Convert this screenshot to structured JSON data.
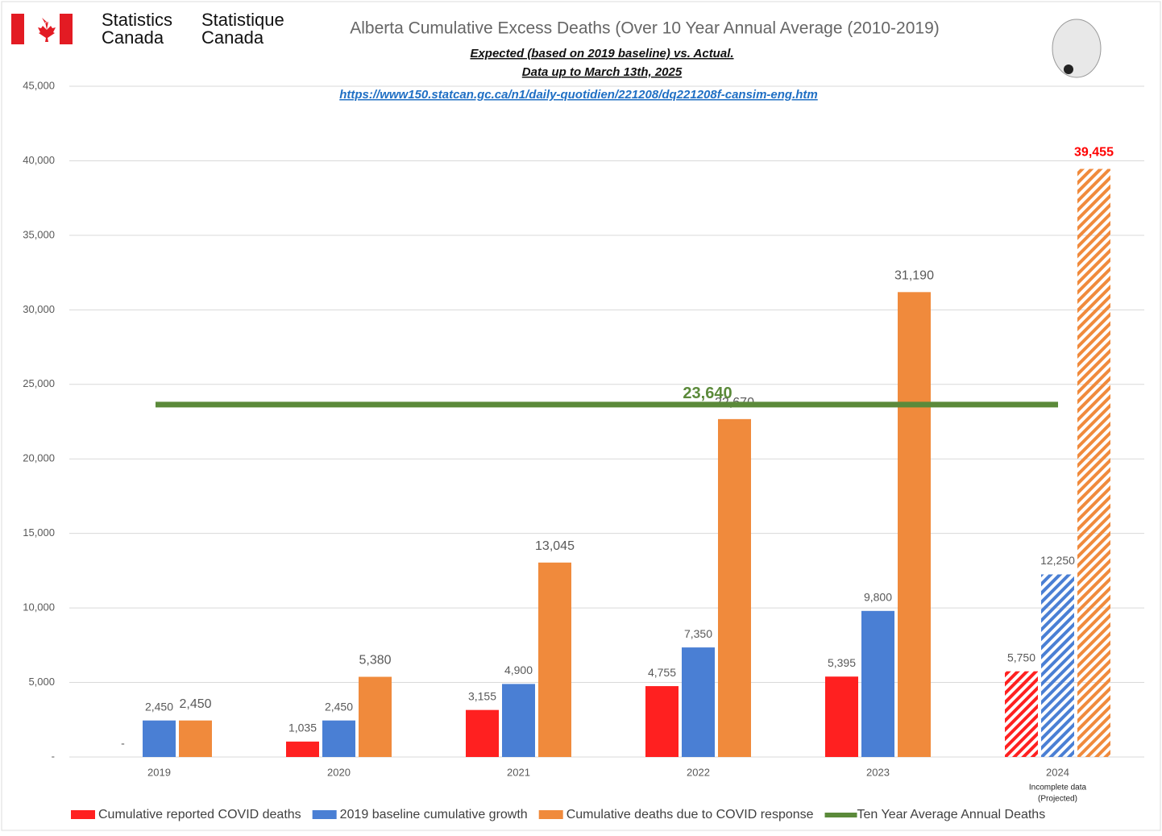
{
  "header": {
    "left_agency": [
      "Statistics",
      "Canada"
    ],
    "right_agency": [
      "Statistique",
      "Canada"
    ]
  },
  "chart_data": {
    "type": "bar",
    "title": "Alberta Cumulative Excess Deaths (Over 10 Year Annual Average (2010-2019)",
    "subtitles": [
      "Expected (based on 2019 baseline) vs. Actual.",
      "Data up to March 13th, 2025"
    ],
    "link": "https://www150.statcan.gc.ca/n1/daily-quotidien/221208/dq221208f-cansim-eng.htm",
    "categories": [
      "2019",
      "2020",
      "2021",
      "2022",
      "2023",
      "2024"
    ],
    "category_notes": [
      null,
      null,
      null,
      null,
      null,
      [
        "Incomplete data",
        "(Projected)"
      ]
    ],
    "hatched": [
      false,
      false,
      false,
      false,
      false,
      true
    ],
    "ylim": [
      0,
      45000
    ],
    "yticks": [
      {
        "value": 0,
        "label": "-"
      },
      {
        "value": 5000,
        "label": "5,000"
      },
      {
        "value": 10000,
        "label": "10,000"
      },
      {
        "value": 15000,
        "label": "15,000"
      },
      {
        "value": 20000,
        "label": "20,000"
      },
      {
        "value": 25000,
        "label": "25,000"
      },
      {
        "value": 30000,
        "label": "30,000"
      },
      {
        "value": 35000,
        "label": "35,000"
      },
      {
        "value": 40000,
        "label": "40,000"
      },
      {
        "value": 45000,
        "label": "45,000"
      }
    ],
    "grid": true,
    "series": [
      {
        "name": "Cumulative reported COVID deaths",
        "color": "#ff2020",
        "values": [
          0,
          1035,
          3155,
          4755,
          5395,
          5750
        ],
        "value_labels": [
          "-",
          "1,035",
          "3,155",
          "4,755",
          "5,395",
          "5,750"
        ]
      },
      {
        "name": "2019 baseline cumulative growth",
        "color": "#4a7fd4",
        "values": [
          2450,
          2450,
          4900,
          7350,
          9800,
          12250
        ],
        "value_labels": [
          "2,450",
          "2,450",
          "4,900",
          "7,350",
          "9,800",
          "12,250"
        ]
      },
      {
        "name": "Cumulative deaths due to COVID response",
        "color": "#f08a3c",
        "values": [
          2450,
          5380,
          13045,
          22670,
          31190,
          39455
        ],
        "value_labels": [
          "2,450",
          "5,380",
          "13,045",
          "22,670",
          "31,190",
          "39,455"
        ]
      }
    ],
    "reference_line": {
      "name": "Ten Year Average Annual Deaths",
      "color": "#5b8a3a",
      "value": 23640,
      "value_label": "23,640"
    },
    "highlight_color": "#ff0000",
    "legend": "bottom"
  }
}
